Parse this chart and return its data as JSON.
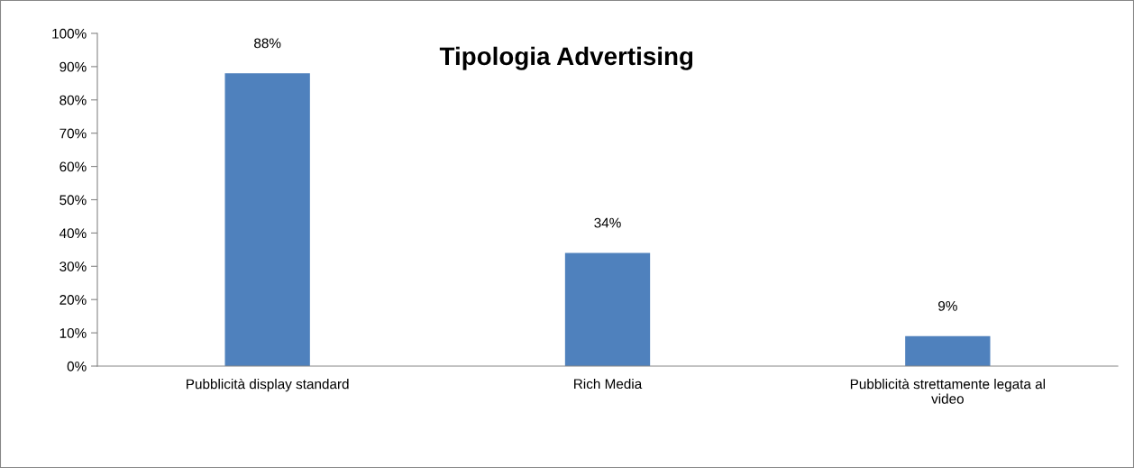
{
  "chart_data": {
    "type": "bar",
    "title": "Tipologia Advertising",
    "categories": [
      "Pubblicità display standard",
      "Rich Media",
      "Pubblicità strettamente legata al video"
    ],
    "values": [
      88,
      34,
      9
    ],
    "color": "#4f81bd",
    "value_labels": [
      "88%",
      "34%",
      "9%"
    ],
    "ylim": [
      0,
      100
    ],
    "yticks": [
      {
        "value": 0,
        "label": "0%"
      },
      {
        "value": 10,
        "label": "10%"
      },
      {
        "value": 20,
        "label": "20%"
      },
      {
        "value": 30,
        "label": "30%"
      },
      {
        "value": 40,
        "label": "40%"
      },
      {
        "value": 50,
        "label": "50%"
      },
      {
        "value": 60,
        "label": "60%"
      },
      {
        "value": 70,
        "label": "70%"
      },
      {
        "value": 80,
        "label": "80%"
      },
      {
        "value": 90,
        "label": "90%"
      },
      {
        "value": 100,
        "label": "100%"
      }
    ],
    "grid": false,
    "legend": false
  }
}
